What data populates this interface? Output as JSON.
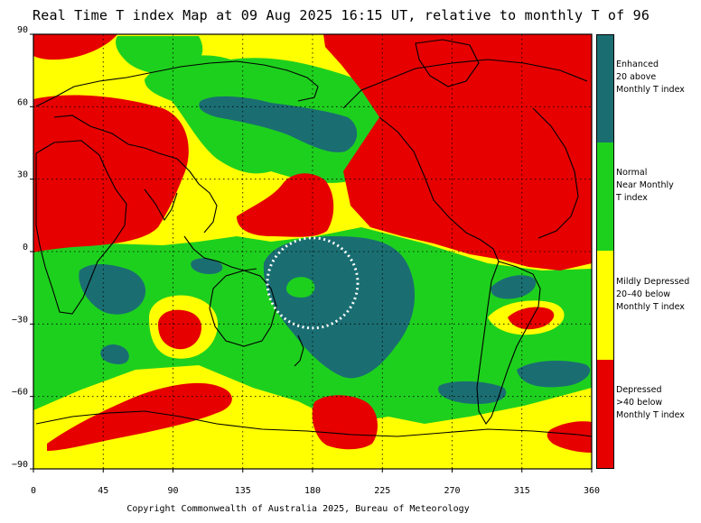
{
  "title": "Real Time T index Map at 09 Aug 2025 16:15 UT, relative to monthly T of 96",
  "copyright": "Copyright Commonwealth of Australia 2025, Bureau of Meteorology",
  "axes": {
    "x_ticks": [
      "0",
      "45",
      "90",
      "135",
      "180",
      "225",
      "270",
      "315",
      "360"
    ],
    "y_ticks": [
      "90",
      "60",
      "30",
      "0",
      "−30",
      "−60",
      "−90"
    ],
    "x_range": [
      0,
      360
    ],
    "y_range": [
      -90,
      90
    ],
    "grid": "dotted, 45° longitude × 30° latitude"
  },
  "legend": [
    {
      "label": "Enhanced 20 above Monthly T index",
      "lines": [
        "Enhanced",
        "20 above",
        "Monthly T index"
      ],
      "color": "#1a6e72"
    },
    {
      "label": "Normal Near Monthly T index",
      "lines": [
        "Normal",
        "Near Monthly",
        "T index"
      ],
      "color": "#1ed01e"
    },
    {
      "label": "Mildly Depressed 20–40 below Monthly T index",
      "lines": [
        "Mildly Depressed",
        "20–40 below",
        "Monthly T index"
      ],
      "color": "#ffff00"
    },
    {
      "label": "Depressed >40 below Monthly T index",
      "lines": [
        "Depressed",
        ">40 below",
        "Monthly T index"
      ],
      "color": "#e60000"
    }
  ],
  "annotation": {
    "shape": "dotted circle",
    "color": "#ffffff",
    "center_lon": 180,
    "center_lat": -13
  }
}
